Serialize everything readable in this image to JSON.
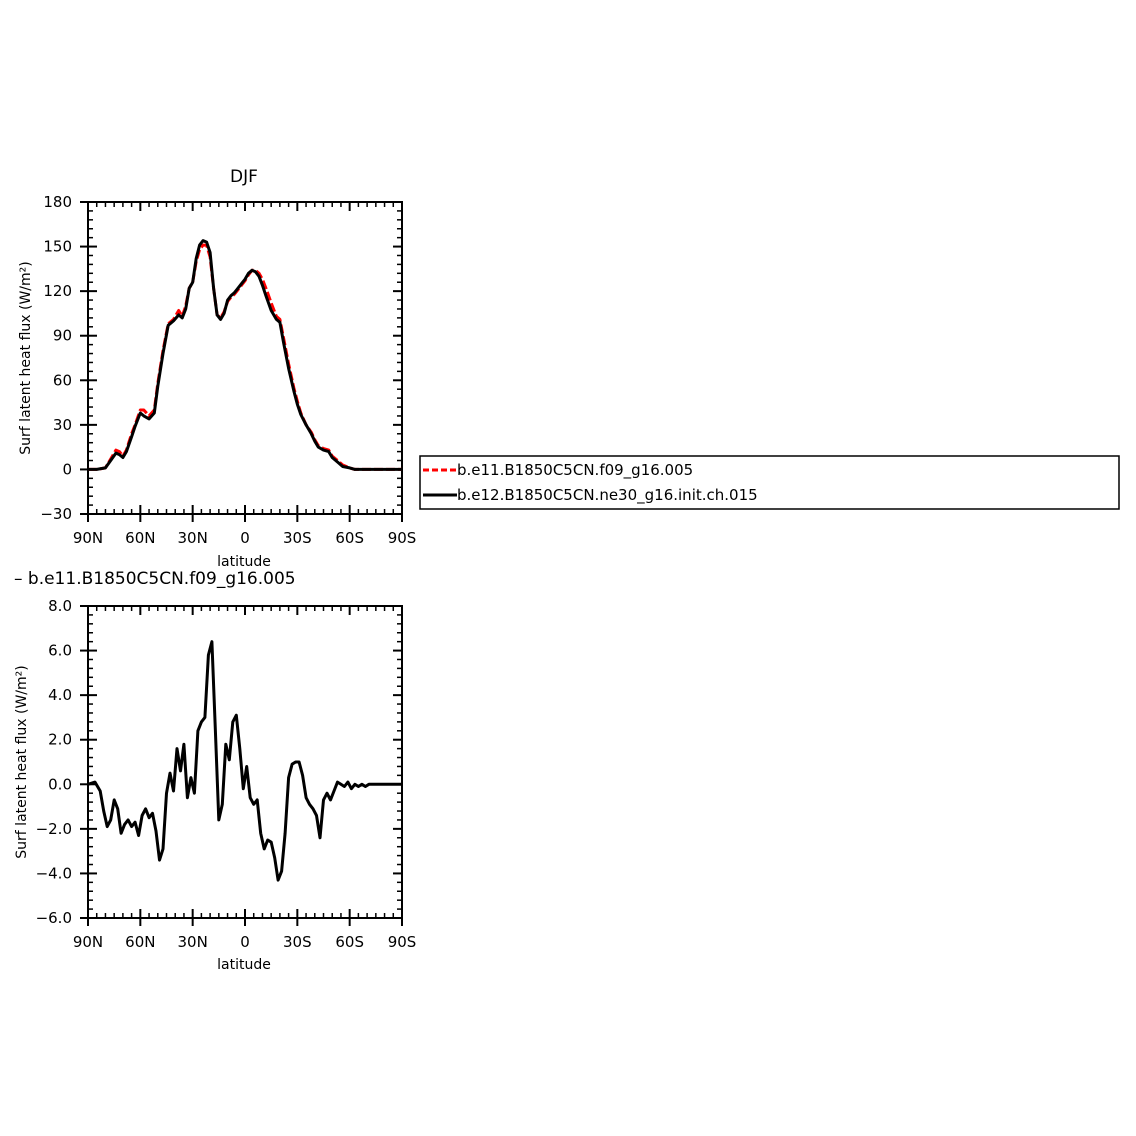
{
  "chart_data": [
    {
      "type": "line",
      "title": "DJF",
      "xlabel": "latitude",
      "ylabel": "Surf latent heat flux (W/m²)",
      "xlim": [
        90,
        -90
      ],
      "ylim": [
        -30,
        180
      ],
      "y_ticks": [
        -30,
        0,
        30,
        60,
        90,
        120,
        150,
        180
      ],
      "x_ticks": [
        90,
        60,
        30,
        0,
        -30,
        -60,
        -90
      ],
      "x_tick_labels": [
        "90N",
        "60N",
        "30N",
        "0",
        "30S",
        "60S",
        "90S"
      ],
      "x": [
        90,
        85,
        80,
        77,
        74,
        72,
        70,
        68,
        65,
        63,
        60,
        58,
        55,
        52,
        50,
        47,
        44,
        41,
        38,
        36,
        34,
        32,
        30,
        28,
        26,
        24,
        22,
        20,
        18,
        16,
        14,
        12,
        10,
        8,
        6,
        4,
        2,
        0,
        -2,
        -4,
        -6,
        -8,
        -10,
        -12,
        -15,
        -18,
        -20,
        -22,
        -25,
        -28,
        -30,
        -32,
        -35,
        -38,
        -40,
        -42,
        -45,
        -48,
        -50,
        -53,
        -56,
        -60,
        -63,
        -66,
        -69,
        -72,
        -75,
        -78,
        -80,
        -83,
        -86,
        -90
      ],
      "series": [
        {
          "name": "b.e11.B1850C5CN.f09_g16.005",
          "color": "#ff0000",
          "dash": "dashed",
          "values": [
            0,
            0,
            1,
            7,
            13,
            12,
            9,
            13,
            24,
            30,
            40,
            40,
            36,
            40,
            58,
            80,
            98,
            101,
            107,
            103,
            110,
            122,
            126,
            140,
            148,
            151,
            151,
            143,
            122,
            104,
            102,
            106,
            113,
            116,
            118,
            121,
            124,
            127,
            131,
            134,
            134,
            132,
            128,
            122,
            112,
            103,
            101,
            89,
            71,
            55,
            46,
            38,
            30,
            25,
            20,
            16,
            14,
            13,
            9,
            6,
            3,
            1,
            0,
            0,
            0,
            0,
            0,
            0,
            0,
            0,
            0,
            0
          ]
        },
        {
          "name": "b.e12.B1850C5CN.ne30_g16.init.ch.015",
          "color": "#000000",
          "dash": "solid",
          "values": [
            0,
            0,
            1,
            6,
            11,
            10,
            8,
            12,
            22,
            29,
            38,
            36,
            34,
            38,
            56,
            78,
            97,
            100,
            104,
            102,
            108,
            122,
            126,
            142,
            151,
            154,
            153,
            146,
            122,
            104,
            101,
            105,
            114,
            117,
            119,
            122,
            125,
            128,
            132,
            134,
            133,
            130,
            124,
            117,
            107,
            101,
            99,
            86,
            68,
            53,
            44,
            37,
            30,
            24,
            19,
            15,
            13,
            12,
            8,
            5,
            2,
            1,
            0,
            0,
            0,
            0,
            0,
            0,
            0,
            0,
            0,
            0
          ]
        }
      ],
      "legend": "right"
    },
    {
      "type": "line",
      "title": "– b.e11.B1850C5CN.f09_g16.005",
      "xlabel": "latitude",
      "ylabel": "Surf latent heat flux (W/m²)",
      "xlim": [
        90,
        -90
      ],
      "ylim": [
        -6,
        8
      ],
      "y_ticks": [
        -6,
        -4,
        -2,
        0,
        2,
        4,
        6,
        8
      ],
      "y_tick_labels": [
        "−6.0",
        "−4.0",
        "−2.0",
        "0.0",
        "2.0",
        "4.0",
        "6.0",
        "8.0"
      ],
      "x_ticks": [
        90,
        60,
        30,
        0,
        -30,
        -60,
        -90
      ],
      "x_tick_labels": [
        "90N",
        "60N",
        "30N",
        "0",
        "30S",
        "60S",
        "90S"
      ],
      "x": [
        90,
        86,
        83,
        81,
        79,
        77,
        75,
        73,
        71,
        69,
        67,
        65,
        63,
        61,
        59,
        57,
        55,
        53,
        51,
        49,
        47,
        45,
        43,
        41,
        39,
        37,
        35,
        33,
        31,
        29,
        27,
        25,
        23,
        21,
        19,
        17,
        15,
        13,
        11,
        9,
        7,
        5,
        3,
        1,
        -1,
        -3,
        -5,
        -7,
        -9,
        -11,
        -13,
        -15,
        -17,
        -19,
        -21,
        -23,
        -25,
        -27,
        -29,
        -31,
        -33,
        -35,
        -37,
        -39,
        -41,
        -43,
        -45,
        -47,
        -49,
        -51,
        -53,
        -55,
        -57,
        -59,
        -61,
        -63,
        -65,
        -67,
        -69,
        -71,
        -73,
        -75,
        -77,
        -79,
        -81,
        -83,
        -85,
        -87,
        -90
      ],
      "series": [
        {
          "name": "",
          "color": "#000000",
          "dash": "solid",
          "values": [
            0,
            0.1,
            -0.3,
            -1.2,
            -1.9,
            -1.6,
            -0.7,
            -1.1,
            -2.2,
            -1.8,
            -1.6,
            -1.9,
            -1.7,
            -2.3,
            -1.4,
            -1.1,
            -1.5,
            -1.3,
            -2.1,
            -3.4,
            -2.9,
            -0.4,
            0.5,
            -0.3,
            1.6,
            0.6,
            1.8,
            -0.6,
            0.3,
            -0.4,
            2.4,
            2.8,
            3.0,
            5.8,
            6.4,
            2.5,
            -1.6,
            -0.9,
            1.8,
            1.1,
            2.8,
            3.1,
            1.6,
            -0.2,
            0.8,
            -0.6,
            -0.9,
            -0.7,
            -2.2,
            -2.9,
            -2.5,
            -2.6,
            -3.3,
            -4.3,
            -3.9,
            -2.2,
            0.3,
            0.9,
            1.0,
            1.0,
            0.4,
            -0.6,
            -0.9,
            -1.1,
            -1.4,
            -2.4,
            -0.7,
            -0.4,
            -0.7,
            -0.3,
            0.1,
            0.0,
            -0.1,
            0.1,
            -0.2,
            0.0,
            -0.1,
            0.0,
            -0.1,
            0.0,
            0.0,
            0.0,
            0.0,
            0.0,
            0.0,
            0.0,
            0.0,
            0.0,
            0.0
          ]
        }
      ]
    }
  ]
}
